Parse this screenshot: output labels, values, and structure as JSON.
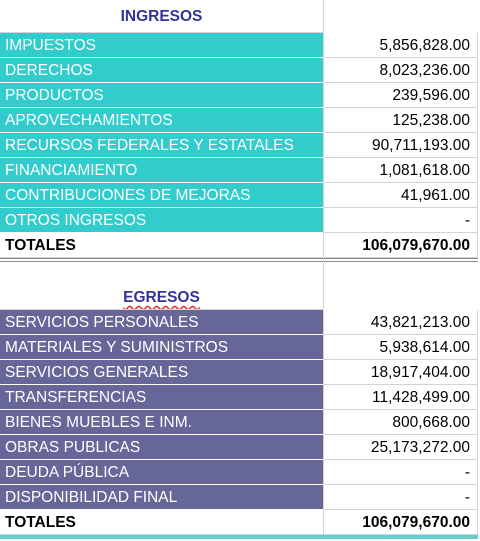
{
  "ingresos": {
    "title": "INGRESOS",
    "rows": [
      [
        "IMPUESTOS",
        "5,856,828.00"
      ],
      [
        "DERECHOS",
        "8,023,236.00"
      ],
      [
        "PRODUCTOS",
        "239,596.00"
      ],
      [
        "APROVECHAMIENTOS",
        "125,238.00"
      ],
      [
        "RECURSOS FEDERALES Y ESTATALES",
        "90,711,193.00"
      ],
      [
        "FINANCIAMIENTO",
        "1,081,618.00"
      ],
      [
        "CONTRIBUCIONES DE MEJORAS",
        "41,961.00"
      ],
      [
        "OTROS INGRESOS",
        "-"
      ]
    ],
    "total": [
      "TOTALES",
      "106,079,670.00"
    ]
  },
  "egresos": {
    "title": "EGRESOS",
    "rows": [
      [
        "SERVICIOS PERSONALES",
        "43,821,213.00"
      ],
      [
        "MATERIALES Y SUMINISTROS",
        "5,938,614.00"
      ],
      [
        "SERVICIOS GENERALES",
        "18,917,404.00"
      ],
      [
        "TRANSFERENCIAS",
        "11,428,499.00"
      ],
      [
        "BIENES MUEBLES E INM.",
        "800,668.00"
      ],
      [
        "OBRAS PUBLICAS",
        "25,173,272.00"
      ],
      [
        "DEUDA PÚBLICA",
        "-"
      ],
      [
        "DISPONIBILIDAD FINAL",
        "-"
      ]
    ],
    "total": [
      "TOTALES",
      "106,079,670.00"
    ]
  }
}
